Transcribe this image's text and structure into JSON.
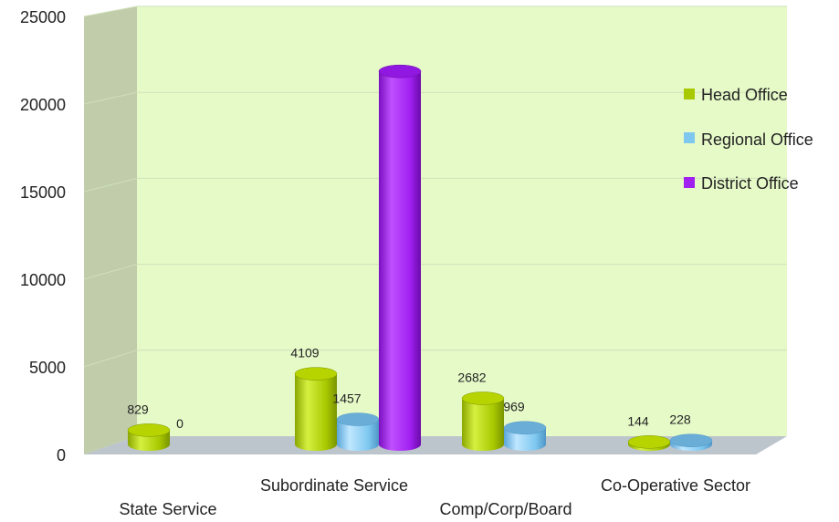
{
  "chart_data": {
    "type": "bar",
    "style": "3d-cylinder",
    "categories": [
      "State Service",
      "Subordinate Service",
      "Comp/Corp/Board",
      "Co-Operative Sector"
    ],
    "series": [
      {
        "name": "Head Office",
        "values": [
          829,
          4109,
          2682,
          144
        ],
        "color": "#a8c800",
        "labels": [
          "829",
          "4109",
          "2682",
          "144"
        ]
      },
      {
        "name": "Regional Office",
        "values": [
          0,
          1457,
          969,
          228
        ],
        "color": "#7ec8f0",
        "labels": [
          "0",
          "1457",
          "969",
          "228"
        ]
      },
      {
        "name": "District Office",
        "values": [
          null,
          21700,
          0,
          0
        ],
        "color": "#a020f0",
        "labels": [
          "",
          "",
          "",
          ""
        ]
      }
    ],
    "ylim": [
      0,
      25000
    ],
    "yticks": [
      0,
      5000,
      10000,
      15000,
      20000,
      25000
    ],
    "ytick_labels": [
      "0",
      "5000",
      "10000",
      "15000",
      "20000",
      "25000"
    ],
    "grid": true,
    "legend_position": "right",
    "colors": {
      "back_wall": "#e6fac8",
      "side_wall": "#c0ccaa",
      "floor": "#bcc4cc",
      "grid": "#cfe0b8"
    }
  }
}
